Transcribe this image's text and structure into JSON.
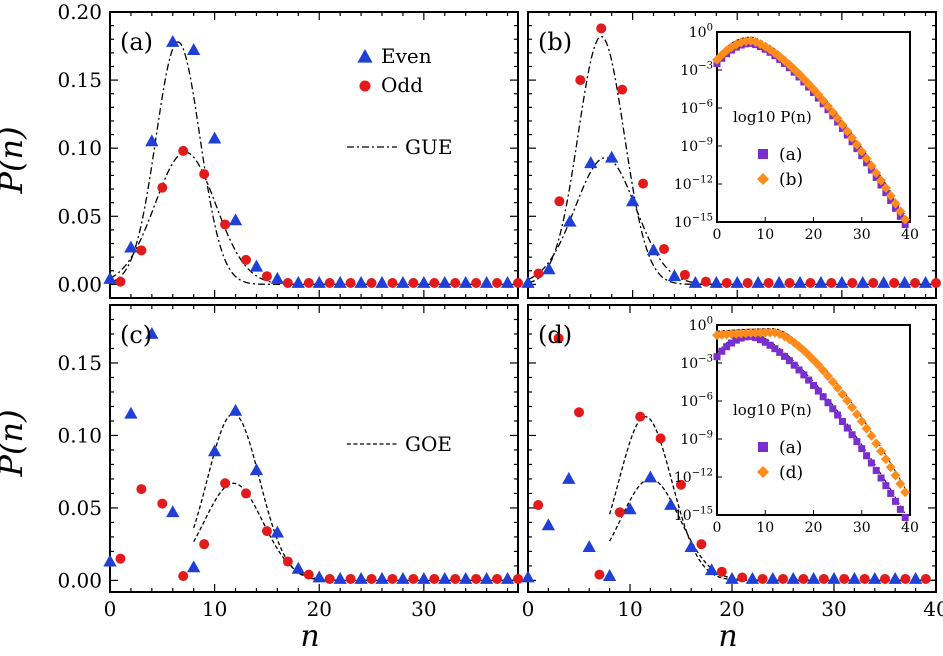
{
  "figure": {
    "x_axis_label": "n",
    "y_axis_label": "P(n)"
  },
  "colors": {
    "even": "#1f3fd6",
    "odd": "#e31a1c",
    "inset_a": "#7a2ecf",
    "inset_b": "#ff8c1a"
  },
  "chart_data": [
    {
      "panel": "a",
      "type": "scatter",
      "label": "(a)",
      "xlim": [
        0,
        39
      ],
      "ylim": [
        -0.01,
        0.2
      ],
      "yticks": [
        "0.00",
        "0.05",
        "0.10",
        "0.15",
        "0.20"
      ],
      "ytick_values": [
        0,
        0.05,
        0.1,
        0.15,
        0.2
      ],
      "xticks": [],
      "legend": {
        "even": "Even",
        "odd": "Odd",
        "curve": "GUE"
      },
      "series": [
        {
          "name": "Even",
          "marker": "triangle",
          "x": [
            0,
            2,
            4,
            6,
            8,
            10,
            12,
            14,
            16,
            18,
            20,
            22,
            24,
            26,
            28,
            30,
            32,
            34,
            36,
            38
          ],
          "y": [
            0.004,
            0.027,
            0.105,
            0.178,
            0.172,
            0.107,
            0.047,
            0.013,
            0.004,
            0.001,
            0.001,
            0.001,
            0.001,
            0.001,
            0.001,
            0.001,
            0.001,
            0.001,
            0.001,
            0.001
          ]
        },
        {
          "name": "Odd",
          "marker": "circle",
          "x": [
            1,
            3,
            5,
            7,
            9,
            11,
            13,
            15,
            17,
            19,
            21,
            23,
            25,
            27,
            29,
            31,
            33,
            35,
            37,
            39
          ],
          "y": [
            0.002,
            0.025,
            0.071,
            0.098,
            0.081,
            0.044,
            0.018,
            0.006,
            0.001,
            0.001,
            0.001,
            0.001,
            0.001,
            0.001,
            0.001,
            0.001,
            0.001,
            0.001,
            0.001,
            0.001
          ]
        }
      ],
      "curves": [
        {
          "name": "GUE even",
          "style": "dashdot",
          "amp": 0.178,
          "mu": 6.5,
          "sigma": 2.1
        },
        {
          "name": "GUE odd",
          "style": "dashdot",
          "amp": 0.097,
          "mu": 7.2,
          "sigma": 2.9
        }
      ]
    },
    {
      "panel": "b",
      "type": "scatter",
      "label": "(b)",
      "xlim": [
        0,
        39
      ],
      "ylim": [
        -0.01,
        0.2
      ],
      "yticks": [],
      "ytick_values": [],
      "xticks": [],
      "series": [
        {
          "name": "Even",
          "marker": "triangle",
          "x": [
            0,
            2,
            4,
            6,
            8,
            10,
            12,
            14,
            16,
            18,
            20,
            22,
            24,
            26,
            28,
            30,
            32,
            34,
            36,
            38
          ],
          "y": [
            0.001,
            0.011,
            0.046,
            0.089,
            0.093,
            0.061,
            0.025,
            0.006,
            0.001,
            0.001,
            0.001,
            0.001,
            0.001,
            0.001,
            0.001,
            0.001,
            0.001,
            0.001,
            0.001,
            0.001
          ]
        },
        {
          "name": "Odd",
          "marker": "circle",
          "x": [
            1,
            3,
            5,
            7,
            9,
            11,
            13,
            15,
            17,
            19,
            21,
            23,
            25,
            27,
            29,
            31,
            33,
            35,
            37,
            39
          ],
          "y": [
            0.008,
            0.061,
            0.15,
            0.188,
            0.143,
            0.074,
            0.026,
            0.007,
            0.002,
            0.001,
            0.001,
            0.001,
            0.001,
            0.001,
            0.001,
            0.001,
            0.001,
            0.001,
            0.001,
            0.001
          ]
        }
      ],
      "curves": [
        {
          "name": "GUE odd",
          "style": "dashdot",
          "amp": 0.182,
          "mu": 7.0,
          "sigma": 2.2
        },
        {
          "name": "GUE even",
          "style": "dashdot",
          "amp": 0.093,
          "mu": 7.4,
          "sigma": 2.9
        }
      ],
      "inset": {
        "ylabel": "log10 P(n)",
        "yticks": [
          "10^0",
          "10^-3",
          "10^-6",
          "10^-9",
          "10^-12",
          "10^-15"
        ],
        "xticks": [
          "0",
          "10",
          "20",
          "30",
          "40"
        ],
        "xlim": [
          0,
          40
        ],
        "ylim_exp": [
          -15,
          0
        ],
        "legend": [
          "(a)",
          "(b)"
        ],
        "series": [
          {
            "name": "(a)",
            "marker": "square",
            "peak_n": 7,
            "peak_exp": -0.9,
            "end_n": 39,
            "end_exp": -15.2,
            "start_exp": -2.5
          },
          {
            "name": "(b)",
            "marker": "diamond",
            "peak_n": 7,
            "peak_exp": -0.7,
            "end_n": 39,
            "end_exp": -14.8,
            "start_exp": -2.2
          }
        ]
      }
    },
    {
      "panel": "c",
      "type": "scatter",
      "label": "(c)",
      "xlim": [
        0,
        39
      ],
      "ylim": [
        -0.008,
        0.19
      ],
      "yticks": [
        "0.00",
        "0.05",
        "0.10",
        "0.15"
      ],
      "ytick_values": [
        0,
        0.05,
        0.1,
        0.15
      ],
      "xticks": [
        "0",
        "10",
        "20",
        "30"
      ],
      "xtick_values": [
        0,
        10,
        20,
        30
      ],
      "legend": {
        "curve": "GOE"
      },
      "series": [
        {
          "name": "Even",
          "marker": "triangle",
          "x": [
            0,
            2,
            4,
            6,
            8,
            10,
            12,
            14,
            16,
            18,
            20,
            22,
            24,
            26,
            28,
            30,
            32,
            34,
            36,
            38
          ],
          "y": [
            0.013,
            0.115,
            0.17,
            0.047,
            0.009,
            0.089,
            0.117,
            0.076,
            0.033,
            0.008,
            0.002,
            0.001,
            0.001,
            0.001,
            0.001,
            0.001,
            0.001,
            0.001,
            0.001,
            0.001
          ]
        },
        {
          "name": "Odd",
          "marker": "circle",
          "x": [
            1,
            3,
            5,
            7,
            9,
            11,
            13,
            15,
            17,
            19,
            21,
            23,
            25,
            27,
            29,
            31,
            33,
            35,
            37,
            39
          ],
          "y": [
            0.015,
            0.063,
            0.053,
            0.003,
            0.025,
            0.067,
            0.06,
            0.034,
            0.013,
            0.004,
            0.001,
            0.001,
            0.001,
            0.001,
            0.001,
            0.001,
            0.001,
            0.001,
            0.001,
            0.001
          ]
        }
      ],
      "curves": [
        {
          "name": "GOE even",
          "style": "dashed",
          "amp": 0.115,
          "mu": 11.8,
          "sigma": 2.5,
          "xmin": 8
        },
        {
          "name": "GOE odd",
          "style": "dashed",
          "amp": 0.067,
          "mu": 11.8,
          "sigma": 2.8,
          "xmin": 8
        }
      ]
    },
    {
      "panel": "d",
      "type": "scatter",
      "label": "(d)",
      "xlim": [
        0,
        40
      ],
      "ylim": [
        -0.008,
        0.19
      ],
      "yticks": [],
      "ytick_values": [],
      "xticks": [
        "0",
        "10",
        "20",
        "30",
        "40"
      ],
      "xtick_values": [
        0,
        10,
        20,
        30,
        40
      ],
      "series": [
        {
          "name": "Even",
          "marker": "triangle",
          "x": [
            0,
            2,
            4,
            6,
            8,
            10,
            12,
            14,
            16,
            18,
            20,
            22,
            24,
            26,
            28,
            30,
            32,
            34,
            36,
            38
          ],
          "y": [
            0.002,
            0.038,
            0.07,
            0.023,
            0.003,
            0.049,
            0.071,
            0.052,
            0.023,
            0.007,
            0.001,
            0.001,
            0.001,
            0.001,
            0.001,
            0.001,
            0.001,
            0.001,
            0.001,
            0.001
          ]
        },
        {
          "name": "Odd",
          "marker": "circle",
          "x": [
            1,
            3,
            5,
            7,
            9,
            11,
            13,
            15,
            17,
            19,
            21,
            23,
            25,
            27,
            29,
            31,
            33,
            35,
            37,
            39
          ],
          "y": [
            0.052,
            0.167,
            0.116,
            0.004,
            0.047,
            0.113,
            0.098,
            0.066,
            0.025,
            0.006,
            0.002,
            0.001,
            0.001,
            0.001,
            0.001,
            0.001,
            0.001,
            0.001,
            0.001,
            0.001
          ]
        }
      ],
      "curves": [
        {
          "name": "GOE odd",
          "style": "dashed",
          "amp": 0.113,
          "mu": 11.5,
          "sigma": 2.6,
          "xmin": 8
        },
        {
          "name": "GOE even",
          "style": "dashed",
          "amp": 0.07,
          "mu": 12.0,
          "sigma": 2.9,
          "xmin": 8
        }
      ],
      "inset": {
        "ylabel": "log10 P(n)",
        "yticks": [
          "10^0",
          "10^-3",
          "10^-6",
          "10^-9",
          "10^-12",
          "10^-15"
        ],
        "xticks": [
          "0",
          "10",
          "20",
          "30",
          "40"
        ],
        "xlim": [
          0,
          40
        ],
        "ylim_exp": [
          -15,
          0
        ],
        "legend": [
          "(a)",
          "(d)"
        ],
        "series": [
          {
            "name": "(a)",
            "marker": "square",
            "peak_n": 7,
            "peak_exp": -0.9,
            "end_n": 39,
            "end_exp": -15.2,
            "start_exp": -2.5
          },
          {
            "name": "(d)",
            "marker": "diamond",
            "peak_n": 12,
            "peak_exp": -0.6,
            "end_n": 39,
            "end_exp": -13.2,
            "start_exp": -0.8
          }
        ]
      }
    }
  ]
}
